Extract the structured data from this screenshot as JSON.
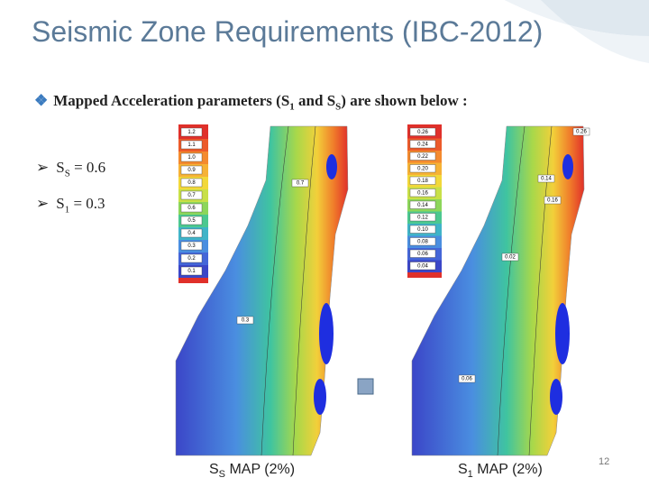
{
  "title": "Seismic Zone Requirements (IBC-2012)",
  "intro": {
    "text": "Mapped Acceleration parameters (S",
    "sub1": "1",
    "mid": " and S",
    "sub2": "S",
    "end": ") are shown below :"
  },
  "bullets": [
    {
      "symbol": "S",
      "sub": "S",
      "text": " = 0.6"
    },
    {
      "symbol": "S",
      "sub": "1",
      "text": " = 0.3"
    }
  ],
  "maps": [
    {
      "legend": [
        "1.2",
        "1.1",
        "1.0",
        "0.9",
        "0.8",
        "0.7",
        "0.6",
        "0.5",
        "0.4",
        "0.3",
        "0.2",
        "0.1"
      ],
      "contour_labels": [
        "0.7",
        "0.3"
      ],
      "caption": {
        "symbol": "S",
        "sub": "S",
        "text": " MAP  (2%)"
      }
    },
    {
      "legend": [
        "0.26",
        "0.24",
        "0.22",
        "0.20",
        "0.18",
        "0.16",
        "0.14",
        "0.12",
        "0.10",
        "0.08",
        "0.06",
        "0.04"
      ],
      "contour_labels": [
        "0.26",
        "0.14",
        "0.16",
        "0.02",
        "0.06"
      ],
      "caption": {
        "symbol": "S",
        "sub": "1",
        "text": " MAP  (2%)"
      }
    }
  ],
  "page_number": "12"
}
